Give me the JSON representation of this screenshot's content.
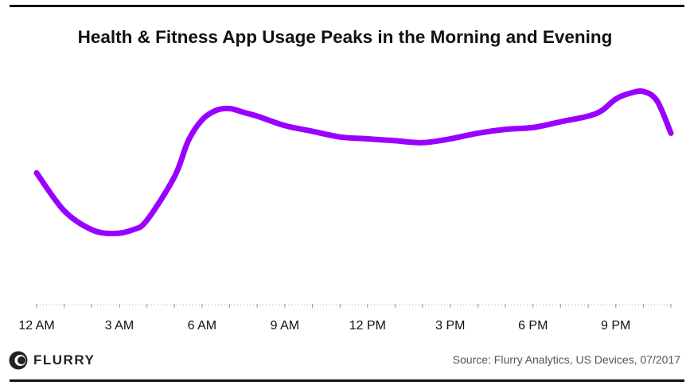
{
  "title": "Health & Fitness App Usage Peaks in the Morning and Evening",
  "source": "Source: Flurry Analytics, US Devices, 07/2017",
  "logo_text": "FLURRY",
  "colors": {
    "line": "#9900ff",
    "text": "#111111",
    "axis": "#999999"
  },
  "chart_data": {
    "type": "line",
    "title": "Health & Fitness App Usage Peaks in the Morning and Evening",
    "xlabel": "",
    "ylabel": "",
    "x_tick_labels": [
      "12 AM",
      "3 AM",
      "6 AM",
      "9 AM",
      "12 PM",
      "3 PM",
      "6 PM",
      "9 PM"
    ],
    "x_tick_hours": [
      0,
      3,
      6,
      9,
      12,
      15,
      18,
      21
    ],
    "xlim": [
      0,
      23
    ],
    "ylim": [
      0,
      1
    ],
    "grid": false,
    "y_axis_shown": false,
    "series": [
      {
        "x": [
          0,
          1,
          2,
          2.8,
          3.5,
          4,
          5,
          5.5,
          6,
          6.5,
          7,
          7.5,
          8,
          9,
          10,
          11,
          12,
          13,
          14,
          15,
          16,
          17,
          18,
          19,
          20,
          20.5,
          21,
          21.5,
          22,
          22.5,
          23
        ],
        "y": [
          0.49,
          0.29,
          0.19,
          0.17,
          0.19,
          0.24,
          0.47,
          0.66,
          0.77,
          0.82,
          0.83,
          0.81,
          0.79,
          0.74,
          0.71,
          0.68,
          0.67,
          0.66,
          0.65,
          0.67,
          0.7,
          0.72,
          0.73,
          0.76,
          0.79,
          0.82,
          0.88,
          0.91,
          0.92,
          0.87,
          0.7
        ]
      }
    ]
  }
}
